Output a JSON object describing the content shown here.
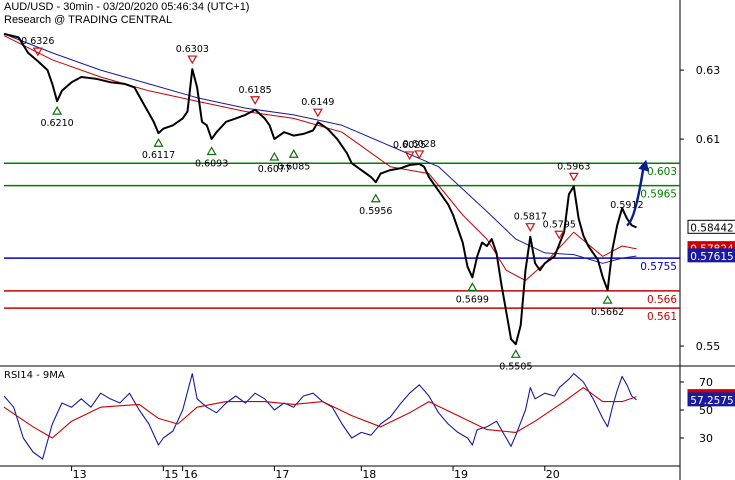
{
  "header": {
    "line1": "AUD/USD - 30min - 03/20/2020 05:46:34 (UTC+1)",
    "line2": "Research @ TRADING CENTRAL"
  },
  "colors": {
    "price": "#000000",
    "ma_fast": "#cc0000",
    "ma_slow": "#1a1aa0",
    "support": "#008000",
    "pivot": "#0000cc",
    "resistance": "#cc0000",
    "arrow": "#0a1f8f",
    "rsi": "#1a1aa0",
    "rsi_ma": "#cc0000"
  },
  "chart_data": [
    {
      "type": "line",
      "symbol": "AUD/USD",
      "timeframe": "30min",
      "x_labels": [
        "13",
        "15",
        "16",
        "17",
        "18",
        "19",
        "20"
      ],
      "y_ticks": [
        0.63,
        0.61,
        0.55
      ],
      "ylim": [
        0.5445,
        0.6425
      ],
      "grid": false,
      "price_path": [
        [
          0,
          0.6405
        ],
        [
          3,
          0.6395
        ],
        [
          5,
          0.635
        ],
        [
          7,
          0.6326
        ],
        [
          9,
          0.63
        ],
        [
          10,
          0.626
        ],
        [
          11,
          0.621
        ],
        [
          12,
          0.624
        ],
        [
          14,
          0.6265
        ],
        [
          16,
          0.628
        ],
        [
          19,
          0.6275
        ],
        [
          22,
          0.6265
        ],
        [
          25,
          0.626
        ],
        [
          27,
          0.625
        ],
        [
          29,
          0.62
        ],
        [
          31,
          0.615
        ],
        [
          32,
          0.6117
        ],
        [
          33,
          0.613
        ],
        [
          35,
          0.614
        ],
        [
          37,
          0.616
        ],
        [
          38,
          0.618
        ],
        [
          39,
          0.6303
        ],
        [
          40,
          0.625
        ],
        [
          41,
          0.615
        ],
        [
          42,
          0.614
        ],
        [
          43,
          0.61
        ],
        [
          44,
          0.612
        ],
        [
          46,
          0.615
        ],
        [
          48,
          0.616
        ],
        [
          50,
          0.617
        ],
        [
          52,
          0.6185
        ],
        [
          54,
          0.616
        ],
        [
          55,
          0.614
        ],
        [
          56,
          0.61
        ],
        [
          58,
          0.612
        ],
        [
          60,
          0.611
        ],
        [
          62,
          0.6115
        ],
        [
          64,
          0.6125
        ],
        [
          65,
          0.6149
        ],
        [
          67,
          0.613
        ],
        [
          69,
          0.61
        ],
        [
          71,
          0.606
        ],
        [
          72,
          0.603
        ],
        [
          74,
          0.601
        ],
        [
          76,
          0.599
        ],
        [
          77,
          0.5975
        ],
        [
          78,
          0.6
        ],
        [
          80,
          0.601
        ],
        [
          82,
          0.6015
        ],
        [
          84,
          0.6025
        ],
        [
          86,
          0.6028
        ],
        [
          87,
          0.602
        ],
        [
          88,
          0.599
        ],
        [
          90,
          0.595
        ],
        [
          92,
          0.591
        ],
        [
          93,
          0.588
        ],
        [
          95,
          0.58
        ],
        [
          96,
          0.573
        ],
        [
          97,
          0.5699
        ],
        [
          98,
          0.576
        ],
        [
          99,
          0.58
        ],
        [
          100,
          0.579
        ],
        [
          101,
          0.581
        ],
        [
          102,
          0.577
        ],
        [
          103,
          0.568
        ],
        [
          104,
          0.56
        ],
        [
          105,
          0.552
        ],
        [
          106,
          0.5505
        ],
        [
          107,
          0.556
        ],
        [
          108,
          0.572
        ],
        [
          109,
          0.5817
        ],
        [
          110,
          0.574
        ],
        [
          111,
          0.572
        ],
        [
          112,
          0.574
        ],
        [
          113,
          0.575
        ],
        [
          114,
          0.576
        ],
        [
          115,
          0.5795
        ],
        [
          116,
          0.583
        ],
        [
          117,
          0.594
        ],
        [
          118,
          0.5963
        ],
        [
          119,
          0.587
        ],
        [
          120,
          0.582
        ],
        [
          121,
          0.579
        ],
        [
          122,
          0.577
        ],
        [
          123,
          0.575
        ],
        [
          124,
          0.57
        ],
        [
          125,
          0.5662
        ],
        [
          126,
          0.578
        ],
        [
          127,
          0.585
        ],
        [
          128,
          0.59
        ],
        [
          129,
          0.587
        ],
        [
          130,
          0.585
        ],
        [
          131,
          0.5844
        ]
      ],
      "ma_fast_path": [
        [
          0,
          0.64
        ],
        [
          10,
          0.633
        ],
        [
          20,
          0.628
        ],
        [
          30,
          0.624
        ],
        [
          40,
          0.621
        ],
        [
          50,
          0.618
        ],
        [
          60,
          0.616
        ],
        [
          70,
          0.612
        ],
        [
          80,
          0.602
        ],
        [
          88,
          0.6
        ],
        [
          95,
          0.588
        ],
        [
          100,
          0.581
        ],
        [
          104,
          0.572
        ],
        [
          108,
          0.569
        ],
        [
          112,
          0.574
        ],
        [
          118,
          0.583
        ],
        [
          124,
          0.576
        ],
        [
          128,
          0.579
        ],
        [
          131,
          0.5782
        ]
      ],
      "ma_slow_path": [
        [
          0,
          0.6405
        ],
        [
          10,
          0.635
        ],
        [
          20,
          0.63
        ],
        [
          30,
          0.626
        ],
        [
          40,
          0.622
        ],
        [
          50,
          0.619
        ],
        [
          60,
          0.617
        ],
        [
          70,
          0.614
        ],
        [
          80,
          0.608
        ],
        [
          90,
          0.602
        ],
        [
          100,
          0.589
        ],
        [
          106,
          0.581
        ],
        [
          112,
          0.577
        ],
        [
          118,
          0.5765
        ],
        [
          124,
          0.574
        ],
        [
          128,
          0.5755
        ],
        [
          131,
          0.5761
        ]
      ],
      "horizontal_levels": [
        {
          "value": 0.603,
          "label": "0.603",
          "kind": "resistance-green"
        },
        {
          "value": 0.5965,
          "label": "0.5965",
          "kind": "resistance-green"
        },
        {
          "value": 0.5755,
          "label": "0.5755",
          "kind": "pivot"
        },
        {
          "value": 0.566,
          "label": "0.566",
          "kind": "support-red"
        },
        {
          "value": 0.561,
          "label": "0.561",
          "kind": "support-red"
        }
      ],
      "price_tags": [
        {
          "value": 0.58442,
          "label": "0.58442",
          "style": "price"
        },
        {
          "value": 0.57824,
          "label": "0.57824",
          "style": "ma_fast"
        },
        {
          "value": 0.57615,
          "label": "0.57615",
          "style": "ma_slow"
        }
      ],
      "pivot_markers": [
        {
          "x": 7,
          "value": 0.6326,
          "label": "0.6326",
          "dir": "down"
        },
        {
          "x": 11,
          "value": 0.621,
          "label": "0.6210",
          "dir": "up"
        },
        {
          "x": 32,
          "value": 0.6117,
          "label": "0.6117",
          "dir": "up"
        },
        {
          "x": 39,
          "value": 0.6303,
          "label": "0.6303",
          "dir": "down"
        },
        {
          "x": 43,
          "value": 0.6093,
          "label": "0.6093",
          "dir": "up"
        },
        {
          "x": 52,
          "value": 0.6185,
          "label": "0.6185",
          "dir": "down"
        },
        {
          "x": 56,
          "value": 0.6077,
          "label": "0.6077",
          "dir": "up"
        },
        {
          "x": 60,
          "value": 0.6085,
          "label": "0.6085",
          "dir": "up"
        },
        {
          "x": 65,
          "value": 0.6149,
          "label": "0.6149",
          "dir": "down"
        },
        {
          "x": 77,
          "value": 0.5956,
          "label": "0.5956",
          "dir": "up"
        },
        {
          "x": 84,
          "value": 0.6025,
          "label": "0.6025",
          "dir": "down"
        },
        {
          "x": 86,
          "value": 0.6028,
          "label": "0.6028",
          "dir": "down"
        },
        {
          "x": 97,
          "value": 0.5699,
          "label": "0.5699",
          "dir": "up"
        },
        {
          "x": 106,
          "value": 0.5505,
          "label": "0.5505",
          "dir": "up"
        },
        {
          "x": 109,
          "value": 0.5817,
          "label": "0.5817",
          "dir": "down"
        },
        {
          "x": 115,
          "value": 0.5795,
          "label": "0.5795",
          "dir": "down"
        },
        {
          "x": 118,
          "value": 0.5963,
          "label": "0.5963",
          "dir": "down"
        },
        {
          "x": 125,
          "value": 0.5662,
          "label": "0.5662",
          "dir": "up"
        }
      ],
      "annotations": [
        {
          "text": "0.5912",
          "x": 129,
          "value": 0.5912
        }
      ],
      "forecast_arrow": {
        "from": [
          129,
          0.585
        ],
        "to": [
          133,
          0.604
        ],
        "color": "#0a1f8f"
      }
    },
    {
      "type": "line",
      "title": "RSI14 - 9MA",
      "y_ticks": [
        70,
        50,
        30
      ],
      "ylim": [
        10,
        80
      ],
      "series": [
        {
          "key": "rsi",
          "values": [
            [
              0,
              60
            ],
            [
              2,
              52
            ],
            [
              4,
              30
            ],
            [
              6,
              20
            ],
            [
              8,
              15
            ],
            [
              10,
              40
            ],
            [
              12,
              55
            ],
            [
              14,
              52
            ],
            [
              16,
              58
            ],
            [
              18,
              52
            ],
            [
              20,
              62
            ],
            [
              22,
              58
            ],
            [
              24,
              55
            ],
            [
              26,
              62
            ],
            [
              28,
              50
            ],
            [
              30,
              40
            ],
            [
              32,
              25
            ],
            [
              33,
              30
            ],
            [
              35,
              35
            ],
            [
              37,
              50
            ],
            [
              39,
              76
            ],
            [
              40,
              58
            ],
            [
              42,
              52
            ],
            [
              44,
              48
            ],
            [
              46,
              55
            ],
            [
              48,
              60
            ],
            [
              50,
              55
            ],
            [
              52,
              62
            ],
            [
              54,
              58
            ],
            [
              56,
              50
            ],
            [
              58,
              55
            ],
            [
              60,
              52
            ],
            [
              62,
              60
            ],
            [
              64,
              62
            ],
            [
              66,
              56
            ],
            [
              68,
              52
            ],
            [
              70,
              40
            ],
            [
              72,
              30
            ],
            [
              74,
              34
            ],
            [
              76,
              32
            ],
            [
              78,
              40
            ],
            [
              80,
              45
            ],
            [
              82,
              54
            ],
            [
              84,
              62
            ],
            [
              86,
              68
            ],
            [
              88,
              60
            ],
            [
              90,
              48
            ],
            [
              92,
              40
            ],
            [
              94,
              34
            ],
            [
              96,
              30
            ],
            [
              97,
              25
            ],
            [
              98,
              36
            ],
            [
              100,
              38
            ],
            [
              102,
              42
            ],
            [
              104,
              30
            ],
            [
              105,
              24
            ],
            [
              106,
              32
            ],
            [
              108,
              50
            ],
            [
              109,
              66
            ],
            [
              110,
              58
            ],
            [
              112,
              62
            ],
            [
              114,
              60
            ],
            [
              115,
              66
            ],
            [
              117,
              72
            ],
            [
              118,
              76
            ],
            [
              120,
              70
            ],
            [
              122,
              58
            ],
            [
              124,
              44
            ],
            [
              125,
              38
            ],
            [
              126,
              52
            ],
            [
              127,
              64
            ],
            [
              128,
              74
            ],
            [
              129,
              68
            ],
            [
              130,
              60
            ],
            [
              131,
              57.26
            ]
          ]
        },
        {
          "key": "rsi_ma",
          "values": [
            [
              0,
              52
            ],
            [
              6,
              38
            ],
            [
              10,
              30
            ],
            [
              14,
              42
            ],
            [
              20,
              52
            ],
            [
              28,
              54
            ],
            [
              32,
              44
            ],
            [
              36,
              40
            ],
            [
              40,
              52
            ],
            [
              46,
              56
            ],
            [
              54,
              56
            ],
            [
              60,
              54
            ],
            [
              66,
              56
            ],
            [
              72,
              46
            ],
            [
              78,
              38
            ],
            [
              84,
              48
            ],
            [
              88,
              56
            ],
            [
              94,
              46
            ],
            [
              100,
              36
            ],
            [
              106,
              34
            ],
            [
              110,
              42
            ],
            [
              116,
              56
            ],
            [
              120,
              66
            ],
            [
              124,
              56
            ],
            [
              128,
              56
            ],
            [
              131,
              59.54
            ]
          ]
        }
      ],
      "price_tags": [
        {
          "value": 59.5439,
          "label": "59.5439",
          "style": "rsi_ma"
        },
        {
          "value": 57.2575,
          "label": "57.2575",
          "style": "rsi"
        }
      ]
    }
  ]
}
